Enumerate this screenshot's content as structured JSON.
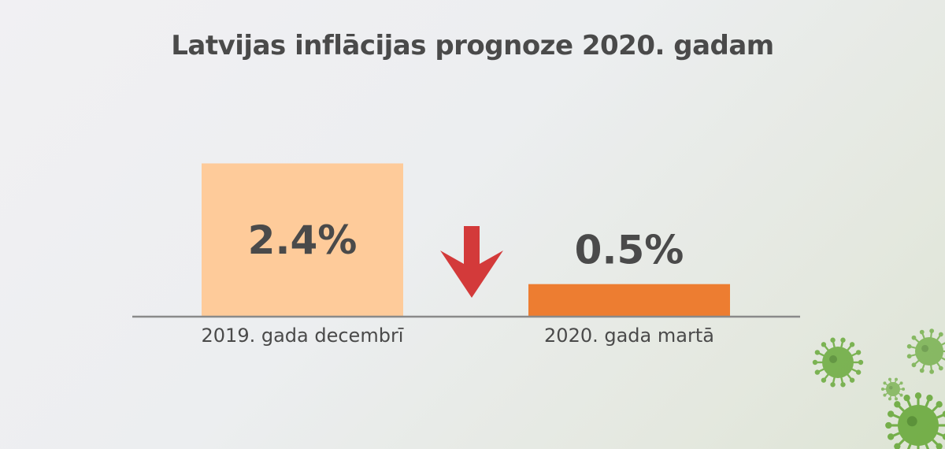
{
  "chart_data": {
    "type": "bar",
    "title": "Latvijas inflācijas prognoze 2020. gadam",
    "categories": [
      "2019. gada decembrī",
      "2020. gada martā"
    ],
    "values": [
      2.4,
      0.5
    ],
    "value_labels": [
      "2.4%",
      "0.5%"
    ],
    "colors": [
      "#fecb9a",
      "#ed7d31"
    ],
    "value_label_positions": [
      "inside",
      "above"
    ],
    "ylim": [
      0,
      3.1
    ],
    "grid": false,
    "legend": "none",
    "axis_color": "#8a8a8a",
    "annotation": {
      "icon": "down-arrow-icon",
      "color": "#d33a3a"
    },
    "decoration": {
      "icon": "virus-icon",
      "color": "#6aaa3c"
    }
  }
}
